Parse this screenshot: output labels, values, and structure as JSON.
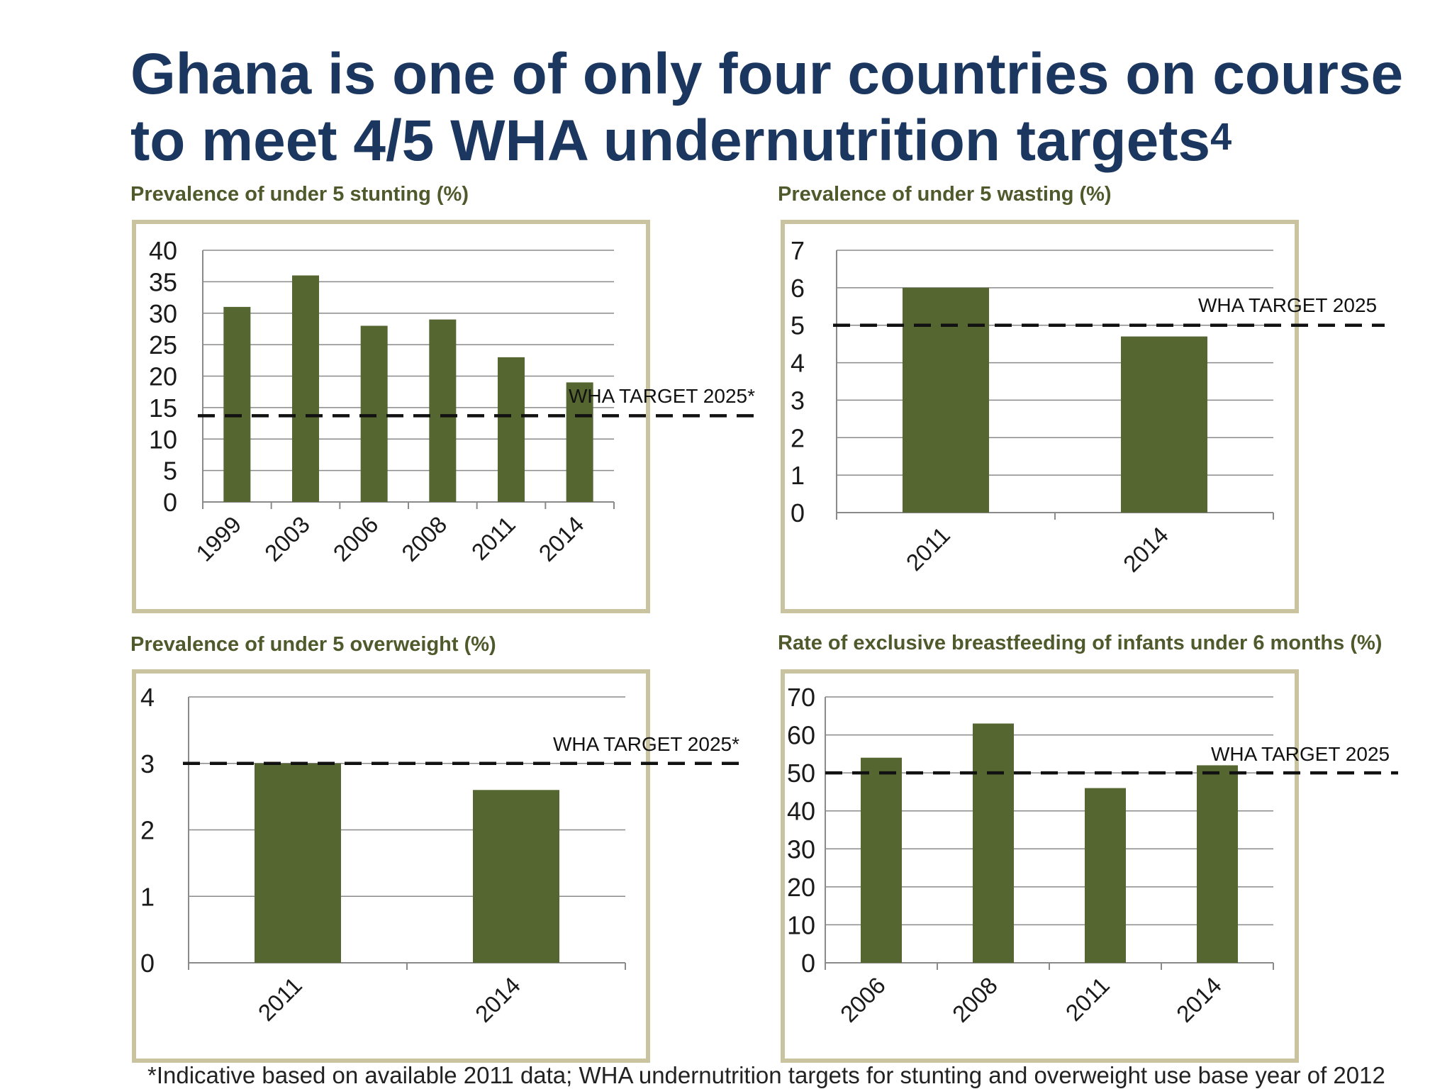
{
  "page": {
    "title_main": "Ghana is one of only four countries on course to meet 4/5 WHA undernutrition targets",
    "title_sup": "4",
    "footnote": "*Indicative based on available 2011 data; WHA undernutrition targets for stunting and overweight use base year of 2012"
  },
  "colors": {
    "bar": "#556630",
    "frame": "#c9c3a0",
    "title": "#1b3760",
    "chart_title": "#4f5a2c"
  },
  "chart_data": [
    {
      "type": "bar",
      "title": "Prevalence of under 5 stunting (%)",
      "categories": [
        "1999",
        "2003",
        "2006",
        "2008",
        "2011",
        "2014"
      ],
      "values": [
        31,
        36,
        28,
        29,
        23,
        19
      ],
      "ylim": [
        0,
        40
      ],
      "yticks": [
        0,
        5,
        10,
        15,
        20,
        25,
        30,
        35,
        40
      ],
      "target": {
        "value": 13.7,
        "label": "WHA TARGET 2025*"
      },
      "grid": true
    },
    {
      "type": "bar",
      "title": "Prevalence of under 5 wasting (%)",
      "categories": [
        "2011",
        "2014"
      ],
      "values": [
        6,
        4.7
      ],
      "ylim": [
        0,
        7
      ],
      "yticks": [
        0,
        1,
        2,
        3,
        4,
        5,
        6,
        7
      ],
      "target": {
        "value": 5,
        "label": "WHA TARGET 2025"
      },
      "grid": true
    },
    {
      "type": "bar",
      "title": "Prevalence of under 5 overweight (%)",
      "categories": [
        "2011",
        "2014"
      ],
      "values": [
        3,
        2.6
      ],
      "ylim": [
        0,
        4
      ],
      "yticks": [
        0,
        1,
        2,
        3,
        4
      ],
      "target": {
        "value": 3,
        "label": "WHA TARGET 2025*"
      },
      "grid": true
    },
    {
      "type": "bar",
      "title": "Rate of exclusive breastfeeding of infants under 6 months (%)",
      "categories": [
        "2006",
        "2008",
        "2011",
        "2014"
      ],
      "values": [
        54,
        63,
        46,
        52
      ],
      "ylim": [
        0,
        70
      ],
      "yticks": [
        0,
        10,
        20,
        30,
        40,
        50,
        60,
        70
      ],
      "target": {
        "value": 50,
        "label": "WHA TARGET 2025"
      },
      "grid": true
    }
  ]
}
